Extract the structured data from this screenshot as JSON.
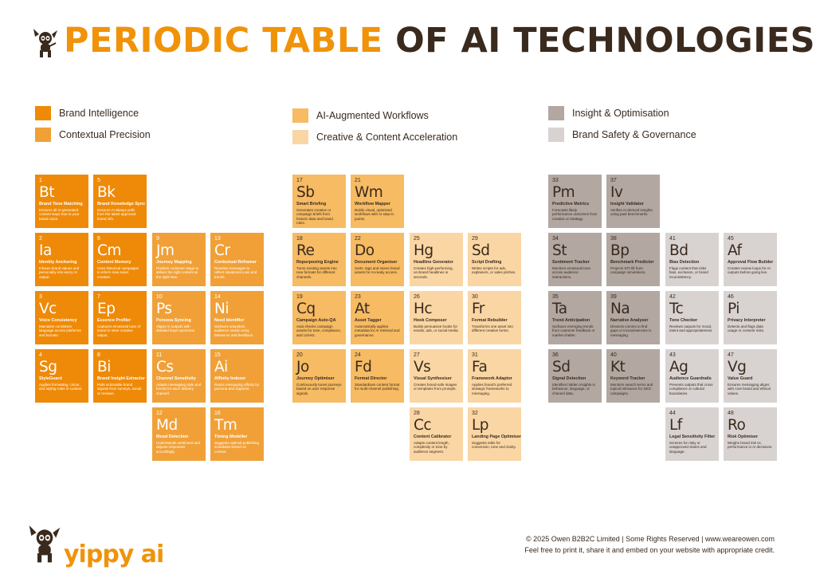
{
  "title": {
    "part1": "PERIODIC TABLE",
    "part2": "OF AI TECHNOLOGIES."
  },
  "colors": {
    "brand": "#ee8a08",
    "contextual": "#f0a037",
    "workflows": "#f6bb63",
    "creative": "#fad6a4",
    "insight": "#b2a7a1",
    "safety": "#d8d3d1",
    "dark_text": "#3a2a1e"
  },
  "legend": [
    {
      "label": "Brand Intelligence",
      "category": "brand"
    },
    {
      "label": "Contextual Precision",
      "category": "contextual"
    },
    {
      "label": "AI-Augmented Workflows",
      "category": "workflows"
    },
    {
      "label": "Creative & Content Acceleration",
      "category": "creative"
    },
    {
      "label": "Insight & Optimisation",
      "category": "insight"
    },
    {
      "label": "Brand Safety & Governance",
      "category": "safety"
    }
  ],
  "elements": [
    {
      "num": "1",
      "sym": "Bt",
      "name": "Brand Tone Matching",
      "desc": "Ensures all AI-generated content stays true to your brand voice.",
      "category": "brand"
    },
    {
      "num": "5",
      "sym": "Bk",
      "name": "Brand Knowledge Sync",
      "desc": "Ensures AI always pulls from the latest approved brand info.",
      "category": "brand"
    },
    {
      "num": "2",
      "sym": "Ia",
      "name": "Identity Anchoring",
      "desc": "Infuses brand values and personality into every AI output.",
      "category": "brand"
    },
    {
      "num": "6",
      "sym": "Cm",
      "name": "Content Memory",
      "desc": "Uses historical campaigns to inform new asset creation.",
      "category": "brand"
    },
    {
      "num": "3",
      "sym": "Vc",
      "name": "Voice Consistency",
      "desc": "Maintains consistent language across platforms and formats.",
      "category": "brand"
    },
    {
      "num": "7",
      "sym": "Ep",
      "name": "Essence Profiler",
      "desc": "Captures emotional tone of brand to steer creative output.",
      "category": "brand"
    },
    {
      "num": "4",
      "sym": "Sg",
      "name": "StyleGuard",
      "desc": "Applies formatting, colour, and styling rules in-context.",
      "category": "brand"
    },
    {
      "num": "8",
      "sym": "Bi",
      "name": "Brand Insight Extractor",
      "desc": "Pulls actionable brand signals from surveys, social or reviews.",
      "category": "brand"
    },
    {
      "num": "9",
      "sym": "Jm",
      "name": "Journey Mapping",
      "desc": "Predicts customer stage to deliver the right content at the right time.",
      "category": "contextual"
    },
    {
      "num": "13",
      "sym": "Cr",
      "name": "Contextual Reframer",
      "desc": "Rewrites messages to reflect situational cues and trends.",
      "category": "contextual"
    },
    {
      "num": "10",
      "sym": "Ps",
      "name": "Persona Syncing",
      "desc": "Aligns AI outputs with detailed buyer personas.",
      "category": "contextual"
    },
    {
      "num": "14",
      "sym": "Ni",
      "name": "Need Identifier",
      "desc": "Surfaces unspoken audience needs using behaviour and feedback.",
      "category": "contextual"
    },
    {
      "num": "11",
      "sym": "Cs",
      "name": "Channel Sensitivity",
      "desc": "Adapts messaging style and format for each delivery channel.",
      "category": "contextual"
    },
    {
      "num": "15",
      "sym": "Ai",
      "name": "Affinity Indexer",
      "desc": "Ranks messaging affinity by persona and segment.",
      "category": "contextual"
    },
    {
      "num": "12",
      "sym": "Md",
      "name": "Mood Detection",
      "desc": "Understands sentiment and adjusts responses accordingly.",
      "category": "contextual"
    },
    {
      "num": "16",
      "sym": "Tm",
      "name": "Timing Modeller",
      "desc": "Suggests optimal publishing schedules based on context.",
      "category": "contextual"
    },
    {
      "num": "17",
      "sym": "Sb",
      "name": "Smart Briefing",
      "desc": "Generates creative or campaign briefs from historic data and brand rules.",
      "category": "workflows"
    },
    {
      "num": "21",
      "sym": "Wm",
      "name": "Workflow Mapper",
      "desc": "Builds visual, optimised workflows with AI step-in points.",
      "category": "workflows"
    },
    {
      "num": "18",
      "sym": "Re",
      "name": "Repurposing Engine",
      "desc": "Turns existing assets into new formats for different channels.",
      "category": "workflows"
    },
    {
      "num": "22",
      "sym": "Do",
      "name": "Document Organiser",
      "desc": "Sorts, tags and stores brand assets for AI-ready access.",
      "category": "workflows"
    },
    {
      "num": "19",
      "sym": "Cq",
      "name": "Campaign Auto-QA",
      "desc": "Auto-checks campaign assets for tone, compliance, and correct.",
      "category": "workflows"
    },
    {
      "num": "23",
      "sym": "At",
      "name": "Asset Tagger",
      "desc": "Automatically applies metadata for AI retrieval and governance.",
      "category": "workflows"
    },
    {
      "num": "20",
      "sym": "Jo",
      "name": "Journey Optimiser",
      "desc": "Continuously tunes journeys based on user response signals.",
      "category": "workflows"
    },
    {
      "num": "24",
      "sym": "Fd",
      "name": "Format Director",
      "desc": "Standardises content format for multi-channel publishing.",
      "category": "workflows"
    },
    {
      "num": "25",
      "sym": "Hg",
      "name": "Headline Generator",
      "desc": "Creates high-performing, on-brand headlines in seconds.",
      "category": "creative"
    },
    {
      "num": "29",
      "sym": "Sd",
      "name": "Script Drafting",
      "desc": "Writes scripts for ads, explainers, or sales pitches.",
      "category": "creative"
    },
    {
      "num": "26",
      "sym": "Hc",
      "name": "Hook Composer",
      "desc": "Builds persuasive hooks for emails, ads, or social media.",
      "category": "creative"
    },
    {
      "num": "30",
      "sym": "Fr",
      "name": "Format Rebuilder",
      "desc": "Transforms one asset into different creative forms.",
      "category": "creative"
    },
    {
      "num": "27",
      "sym": "Vs",
      "name": "Visual Synthesiser",
      "desc": "Creates brand-safe images or templates from prompts.",
      "category": "creative"
    },
    {
      "num": "31",
      "sym": "Fa",
      "name": "Framework Adaptor",
      "desc": "Applies brand's preferred strategic frameworks to messaging.",
      "category": "creative"
    },
    {
      "num": "28",
      "sym": "Cc",
      "name": "Content Calibrator",
      "desc": "Adapts content length, complexity or tone by audience segment.",
      "category": "creative"
    },
    {
      "num": "32",
      "sym": "Lp",
      "name": "Landing Page Optimiser",
      "desc": "Suggests edits for conversion, tone and clarity.",
      "category": "creative"
    },
    {
      "num": "33",
      "sym": "Pm",
      "name": "Predictive Metrics",
      "desc": "Forecasts likely performance outcomes from creative or strategy.",
      "category": "insight"
    },
    {
      "num": "37",
      "sym": "Iv",
      "name": "Insight Validator",
      "desc": "Verifies AI-derived insights using past benchmarks.",
      "category": "insight"
    },
    {
      "num": "34",
      "sym": "St",
      "name": "Sentiment Tracker",
      "desc": "Monitors emotional tone across audience interactions.",
      "category": "insight"
    },
    {
      "num": "38",
      "sym": "Bp",
      "name": "Benchmark Predictor",
      "desc": "Projects KPI lift from campaign simulations.",
      "category": "insight"
    },
    {
      "num": "35",
      "sym": "Ta",
      "name": "Trend Anticipation",
      "desc": "Surfaces emerging trends from customer feedback or market chatter.",
      "category": "insight"
    },
    {
      "num": "39",
      "sym": "Na",
      "name": "Narrative Analyser",
      "desc": "Dissects comms to find gaps or inconsistencies in messaging.",
      "category": "insight"
    },
    {
      "num": "36",
      "sym": "Sd",
      "name": "Signal Detection",
      "desc": "Identifies hidden insights in behaviour, language, or channel data.",
      "category": "insight"
    },
    {
      "num": "40",
      "sym": "Kt",
      "name": "Keyword Tracker",
      "desc": "Monitors search terms and topical relevance for SEO campaigns.",
      "category": "insight"
    },
    {
      "num": "41",
      "sym": "Bd",
      "name": "Bias Detection",
      "desc": "Flags content that risks bias, exclusion, or brand inconsistency.",
      "category": "safety"
    },
    {
      "num": "45",
      "sym": "Af",
      "name": "Approval Flow Builder",
      "desc": "Creates review loops for AI outputs before going live.",
      "category": "safety"
    },
    {
      "num": "42",
      "sym": "Tc",
      "name": "Tone Checker",
      "desc": "Reviews outputs for mood, intent and appropriateness.",
      "category": "safety"
    },
    {
      "num": "46",
      "sym": "Pi",
      "name": "Privacy Interpreter",
      "desc": "Detects and flags data usage or consent risks.",
      "category": "safety"
    },
    {
      "num": "43",
      "sym": "Ag",
      "name": "Audience Guardrails",
      "desc": "Prevents outputs that cross compliance or cultural boundaries.",
      "category": "safety"
    },
    {
      "num": "47",
      "sym": "Vg",
      "name": "Value Guard",
      "desc": "Ensures messaging aligns with core brand and ethical values.",
      "category": "safety"
    },
    {
      "num": "44",
      "sym": "Lf",
      "name": "Legal Sensitivity Filter",
      "desc": "Screens for risky or unapproved claims and language.",
      "category": "safety"
    },
    {
      "num": "48",
      "sym": "Ro",
      "name": "Risk Optimiser",
      "desc": "Weighs brand risk vs. performance in AI decisions.",
      "category": "safety"
    }
  ],
  "footer": {
    "line1": "© 2025 Owen B2B2C Limited  |  Some Rights Reserved  |  www.weareowen.com",
    "line2": "Feel free to print it, share it and embed on your website with appropriate credit."
  },
  "brand_logo": "yippy ai"
}
